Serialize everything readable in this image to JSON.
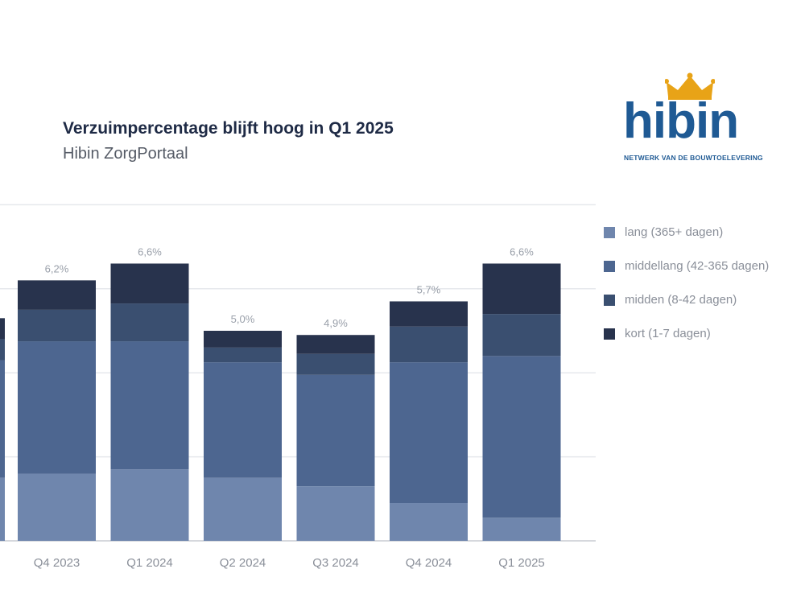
{
  "header": {
    "title": "Verzuimpercentage blijft hoog in Q1 2025",
    "subtitle": "Hibin ZorgPortaal"
  },
  "logo": {
    "word": "hibin",
    "tagline": "NETWERK VAN DE BOUWTOELEVERING",
    "icon": "crown-icon",
    "color": "#1f5a94",
    "crown_color": "#e8a317"
  },
  "chart_data": {
    "type": "bar",
    "stacked": true,
    "categories": [
      "Q4 2023",
      "Q1 2024",
      "Q2 2024",
      "Q3 2024",
      "Q4 2024",
      "Q1 2025"
    ],
    "totals": [
      "6,2%",
      "6,6%",
      "5,0%",
      "4,9%",
      "5,7%",
      "6,6%"
    ],
    "series": [
      {
        "name": "lang (365+ dagen)",
        "color": "#6f86ad",
        "values": [
          1.6,
          1.7,
          1.5,
          1.3,
          0.9,
          0.55
        ]
      },
      {
        "name": "middellang (42-365 dagen)",
        "color": "#4d6690",
        "values": [
          3.15,
          3.05,
          2.75,
          2.65,
          3.35,
          3.85
        ]
      },
      {
        "name": "midden (8-42 dagen)",
        "color": "#3a4f70",
        "values": [
          0.75,
          0.9,
          0.35,
          0.5,
          0.85,
          1.0
        ]
      },
      {
        "name": "kort (1-7 dagen)",
        "color": "#28334d",
        "values": [
          0.7,
          0.95,
          0.4,
          0.45,
          0.6,
          1.2
        ]
      }
    ],
    "partial_bar": {
      "values": [
        1.5,
        2.8,
        0.5,
        0.5
      ]
    },
    "ylim": [
      0,
      8
    ],
    "grid": true,
    "legend_position": "right"
  }
}
